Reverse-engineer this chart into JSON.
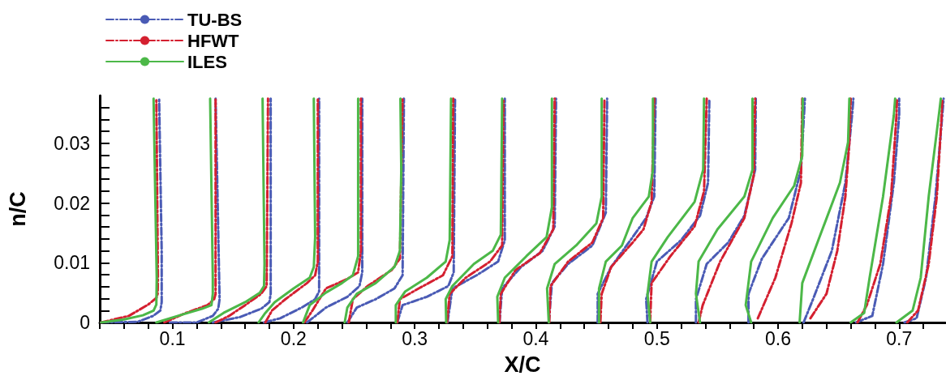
{
  "chart_data": {
    "type": "line",
    "xlabel": "X/C",
    "ylabel": "n/C",
    "xlim": [
      0.04,
      0.738
    ],
    "ylim": [
      0,
      0.038
    ],
    "xticks": [
      {
        "value": 0.04,
        "label": null
      },
      {
        "value": 0.06,
        "label": null
      },
      {
        "value": 0.08,
        "label": null
      },
      0.1,
      {
        "value": 0.12,
        "label": null
      },
      {
        "value": 0.14,
        "label": null
      },
      {
        "value": 0.16,
        "label": null
      },
      {
        "value": 0.18,
        "label": null
      },
      0.2,
      {
        "value": 0.22,
        "label": null
      },
      {
        "value": 0.24,
        "label": null
      },
      {
        "value": 0.26,
        "label": null
      },
      {
        "value": 0.28,
        "label": null
      },
      0.3,
      {
        "value": 0.32,
        "label": null
      },
      {
        "value": 0.34,
        "label": null
      },
      {
        "value": 0.36,
        "label": null
      },
      {
        "value": 0.38,
        "label": null
      },
      0.4,
      {
        "value": 0.42,
        "label": null
      },
      {
        "value": 0.44,
        "label": null
      },
      {
        "value": 0.46,
        "label": null
      },
      {
        "value": 0.48,
        "label": null
      },
      0.5,
      {
        "value": 0.52,
        "label": null
      },
      {
        "value": 0.54,
        "label": null
      },
      {
        "value": 0.56,
        "label": null
      },
      {
        "value": 0.58,
        "label": null
      },
      0.6,
      {
        "value": 0.62,
        "label": null
      },
      {
        "value": 0.64,
        "label": null
      },
      {
        "value": 0.66,
        "label": null
      },
      {
        "value": 0.68,
        "label": null
      },
      0.7,
      {
        "value": 0.72,
        "label": null
      }
    ],
    "yticks": [
      0,
      {
        "value": 0.002,
        "label": null
      },
      {
        "value": 0.004,
        "label": null
      },
      {
        "value": 0.006,
        "label": null
      },
      {
        "value": 0.008,
        "label": null
      },
      0.01,
      {
        "value": 0.012,
        "label": null
      },
      {
        "value": 0.014,
        "label": null
      },
      {
        "value": 0.016,
        "label": null
      },
      {
        "value": 0.018,
        "label": null
      },
      0.02,
      {
        "value": 0.022,
        "label": null
      },
      {
        "value": 0.024,
        "label": null
      },
      {
        "value": 0.026,
        "label": null
      },
      {
        "value": 0.028,
        "label": null
      },
      0.03,
      {
        "value": 0.032,
        "label": null
      },
      {
        "value": 0.034,
        "label": null
      },
      {
        "value": 0.036,
        "label": null
      }
    ],
    "grid": false,
    "legend": "top left",
    "marker": "none",
    "series": [
      {
        "name": "TU-BS",
        "color": "#4a5bb5",
        "line_style": "dashed",
        "x": [
          0.0411,
          0.0711,
          0.084,
          0.09,
          0.0911,
          0.0911,
          0.089,
          null,
          0.0978,
          0.12,
          0.1333,
          0.1378,
          0.1389,
          0.1356,
          null,
          0.1333,
          0.1556,
          0.1733,
          0.18,
          0.1811,
          0.1811,
          null,
          0.1756,
          0.1889,
          0.2067,
          0.2178,
          0.2211,
          0.2211,
          null,
          0.2111,
          0.2267,
          0.2444,
          0.2544,
          0.2567,
          0.2567,
          null,
          0.2444,
          0.2522,
          0.2678,
          0.2833,
          0.29,
          0.2911,
          null,
          0.2856,
          0.29,
          0.31,
          0.3278,
          0.3322,
          0.3333,
          null,
          0.3271,
          0.3311,
          0.3511,
          0.3689,
          0.3744,
          0.3744,
          null,
          0.37,
          0.3722,
          0.3878,
          0.4056,
          0.4156,
          0.4167,
          null,
          0.4107,
          0.4133,
          0.4267,
          0.4467,
          0.4578,
          0.4589,
          null,
          0.4511,
          0.4511,
          0.4622,
          0.48,
          0.4911,
          0.4978,
          0.4989,
          null,
          0.4922,
          0.4911,
          0.5,
          0.52,
          0.5356,
          0.5422,
          0.5433,
          null,
          0.5322,
          0.5322,
          0.5411,
          0.5589,
          0.5722,
          0.5811,
          0.5816,
          null,
          0.5756,
          0.5756,
          0.5867,
          0.6089,
          0.6189,
          0.6222,
          null,
          0.6211,
          0.6289,
          0.6444,
          0.6556,
          0.6611,
          0.6622,
          null,
          0.6644,
          0.6778,
          0.6867,
          0.6956,
          0.7,
          0.7,
          null,
          0.7044,
          0.7144,
          0.7222,
          0.73,
          0.7356,
          0.7367
        ],
        "values": [
          0,
          0.0001,
          0.0011,
          0.002,
          0.0034,
          0.012,
          0.0375,
          null,
          0,
          0,
          0.0011,
          0.0023,
          0.0039,
          0.0375,
          null,
          0,
          0.0009,
          0.0023,
          0.0034,
          0.0048,
          0.0375,
          null,
          0,
          0.0007,
          0.0025,
          0.0039,
          0.0052,
          0.0375,
          null,
          0,
          0.0025,
          0.0043,
          0.0061,
          0.0084,
          0.0375,
          null,
          0,
          0.0025,
          0.0039,
          0.0057,
          0.0079,
          0.0375,
          null,
          0,
          0.0029,
          0.0043,
          0.0061,
          0.0084,
          0.0375,
          null,
          0,
          0.0057,
          0.0079,
          0.0102,
          0.0138,
          0.0375,
          null,
          0,
          0.0057,
          0.0093,
          0.012,
          0.0161,
          0.0375,
          null,
          0,
          0.0066,
          0.0098,
          0.0129,
          0.0184,
          0.0375,
          null,
          0,
          0.0048,
          0.0093,
          0.0143,
          0.0175,
          0.0211,
          0.0375,
          null,
          0,
          0.0039,
          0.0102,
          0.0138,
          0.0179,
          0.0234,
          0.0375,
          null,
          0,
          0.0039,
          0.0098,
          0.0134,
          0.0179,
          0.0256,
          0.0375,
          null,
          0,
          0.0048,
          0.0107,
          0.0175,
          0.0256,
          0.0375,
          null,
          0,
          0.0039,
          0.012,
          0.0234,
          0.0347,
          0.0375,
          null,
          0,
          0.0011,
          0.0098,
          0.0234,
          0.0347,
          0.0375,
          null,
          0,
          0.0007,
          0.0075,
          0.0211,
          0.0347,
          0.0375
        ]
      },
      {
        "name": "HFWT",
        "color": "#d42030",
        "line_style": "dashed",
        "x": [
          0.0411,
          0.064,
          0.08,
          0.0867,
          0.0878,
          0.088,
          0.0867,
          null,
          0.0933,
          0.1111,
          0.1289,
          0.1344,
          0.1356,
          0.1356,
          null,
          0.1356,
          0.1467,
          0.16,
          0.1733,
          0.1778,
          0.1789,
          null,
          0.1767,
          0.1822,
          0.1933,
          0.2111,
          0.2178,
          0.22,
          0.22,
          null,
          0.2089,
          0.2156,
          0.2267,
          0.2444,
          0.2533,
          0.2556,
          0.2556,
          null,
          0.2456,
          0.2489,
          0.2611,
          0.2811,
          0.2878,
          0.29,
          null,
          0.2856,
          0.2878,
          0.3033,
          0.3233,
          0.3311,
          0.3318,
          null,
          0.3267,
          0.3289,
          0.3422,
          0.3622,
          0.3722,
          0.3733,
          null,
          0.37,
          0.3711,
          0.3833,
          0.4033,
          0.4144,
          0.4156,
          null,
          0.4111,
          0.4122,
          0.4267,
          0.4467,
          0.4556,
          0.4567,
          null,
          0.4533,
          0.4544,
          0.4622,
          0.48,
          0.4889,
          0.4956,
          0.4978,
          null,
          0.4944,
          0.4956,
          0.5111,
          0.5311,
          0.5389,
          0.5411,
          null,
          0.5344,
          0.5378,
          0.5522,
          0.5722,
          0.58,
          0.5811,
          null,
          0.5833,
          0.5978,
          0.6111,
          0.6189,
          0.62,
          null,
          0.6267,
          0.64,
          0.6489,
          0.6556,
          0.6589,
          0.66,
          null,
          0.6656,
          0.6733,
          0.6844,
          0.6933,
          0.6978,
          0.6982,
          null,
          0.7067,
          0.7156,
          0.7244,
          0.7311,
          0.7351,
          0.7356
        ],
        "values": [
          0,
          0.0011,
          0.003,
          0.0041,
          0.0048,
          0.0075,
          0.0375,
          null,
          0,
          0.0016,
          0.0029,
          0.0039,
          0.0048,
          0.0375,
          null,
          0,
          0.0011,
          0.0029,
          0.0048,
          0.0061,
          0.0375,
          null,
          0,
          0.002,
          0.0039,
          0.0066,
          0.0079,
          0.0102,
          0.0375,
          null,
          0,
          0.002,
          0.0057,
          0.0073,
          0.0084,
          0.012,
          0.0375,
          null,
          0,
          0.0039,
          0.0061,
          0.0088,
          0.0107,
          0.0375,
          null,
          0,
          0.0039,
          0.0057,
          0.0079,
          0.0111,
          0.0375,
          null,
          0,
          0.0048,
          0.0075,
          0.0102,
          0.0129,
          0.0375,
          null,
          0,
          0.0048,
          0.0088,
          0.0116,
          0.0156,
          0.0375,
          null,
          0,
          0.0061,
          0.0102,
          0.0134,
          0.0175,
          0.0375,
          null,
          0,
          0.0048,
          0.0093,
          0.0134,
          0.0156,
          0.0202,
          0.0375,
          null,
          0,
          0.0066,
          0.0111,
          0.0161,
          0.022,
          0.0375,
          null,
          0,
          0.0029,
          0.0102,
          0.0175,
          0.0247,
          0.0375,
          null,
          0.0007,
          0.0075,
          0.0166,
          0.0234,
          0.0375,
          null,
          0.0007,
          0.0048,
          0.012,
          0.0211,
          0.0302,
          0.0375,
          null,
          0,
          0.0029,
          0.0098,
          0.0211,
          0.0347,
          0.0375,
          null,
          0,
          0.002,
          0.0098,
          0.0211,
          0.0347,
          0.0375
        ]
      },
      {
        "name": "ILES",
        "color": "#4cb848",
        "line_style": "solid",
        "x": [
          0.0411,
          0.06,
          0.0756,
          0.0844,
          0.0867,
          0.087,
          0.0844,
          null,
          0.0867,
          0.1044,
          0.1244,
          0.1322,
          0.1333,
          0.1333,
          0.1311,
          null,
          0.13,
          0.1422,
          0.16,
          0.1722,
          0.1756,
          0.176,
          0.1744,
          null,
          0.1711,
          0.1767,
          0.1844,
          0.2,
          0.2133,
          0.2167,
          0.2178,
          0.2167,
          null,
          0.2078,
          0.2133,
          0.2267,
          0.24,
          0.2489,
          0.2533,
          0.2533,
          null,
          0.2422,
          0.2444,
          0.2522,
          0.2678,
          0.2833,
          0.2878,
          0.2889,
          0.2882,
          null,
          0.2844,
          0.2844,
          0.2922,
          0.31,
          0.3256,
          0.3289,
          0.33,
          null,
          0.326,
          0.3256,
          0.3311,
          0.3489,
          0.3644,
          0.3711,
          0.3722,
          null,
          0.3689,
          0.3682,
          0.3744,
          0.3922,
          0.4089,
          0.4133,
          0.4133,
          null,
          0.4107,
          0.4093,
          0.4156,
          0.4333,
          0.45,
          0.4544,
          0.4544,
          null,
          0.4522,
          0.4522,
          0.4578,
          0.4711,
          0.48,
          0.4933,
          0.4967,
          0.4967,
          null,
          0.4944,
          0.4922,
          0.4956,
          0.5089,
          0.5311,
          0.5382,
          0.5389,
          null,
          0.5356,
          0.5322,
          0.5344,
          0.55,
          0.5722,
          0.5789,
          0.5789,
          null,
          0.5778,
          0.5733,
          0.5778,
          0.5956,
          0.6133,
          0.62,
          0.6204,
          null,
          0.6178,
          0.62,
          0.6333,
          0.6511,
          0.6578,
          0.6589,
          null,
          0.66,
          0.6711,
          0.6756,
          0.6867,
          0.6956,
          0.6967,
          null,
          0.6978,
          0.7111,
          0.7178,
          0.7244,
          0.7333,
          0.7344
        ],
        "values": [
          0,
          0.0005,
          0.0012,
          0.002,
          0.003,
          0.0075,
          0.0375,
          null,
          0,
          0.0011,
          0.0023,
          0.0029,
          0.0048,
          0.0075,
          0.0375,
          null,
          0,
          0.0016,
          0.0034,
          0.005,
          0.0061,
          0.0098,
          0.0375,
          null,
          0,
          0.0016,
          0.0034,
          0.0057,
          0.0075,
          0.0093,
          0.0143,
          0.0375,
          null,
          0,
          0.0029,
          0.005,
          0.0066,
          0.0079,
          0.0111,
          0.0375,
          null,
          0,
          0.0025,
          0.0048,
          0.0066,
          0.0093,
          0.012,
          0.0256,
          0.0375,
          null,
          0,
          0.0029,
          0.0052,
          0.0075,
          0.0102,
          0.0138,
          0.0375,
          null,
          0,
          0.0039,
          0.0061,
          0.0098,
          0.012,
          0.0147,
          0.0375,
          null,
          0,
          0.0043,
          0.0075,
          0.0111,
          0.0143,
          0.0193,
          0.0375,
          null,
          0,
          0.0057,
          0.0098,
          0.0129,
          0.0166,
          0.0211,
          0.0375,
          null,
          0,
          0.0057,
          0.0102,
          0.0129,
          0.0175,
          0.0211,
          0.0256,
          0.0375,
          null,
          0,
          0.0048,
          0.0102,
          0.0143,
          0.0202,
          0.0256,
          0.0375,
          null,
          0,
          0.0048,
          0.0102,
          0.0156,
          0.0211,
          0.0256,
          0.0375,
          null,
          0,
          0.0029,
          0.0102,
          0.0175,
          0.0229,
          0.0279,
          0.0375,
          null,
          0,
          0.0066,
          0.0138,
          0.0234,
          0.0302,
          0.0375,
          null,
          0,
          0.0016,
          0.0075,
          0.0211,
          0.0347,
          0.0375,
          null,
          0,
          0.002,
          0.0075,
          0.0211,
          0.0356,
          0.0375
        ]
      }
    ]
  }
}
